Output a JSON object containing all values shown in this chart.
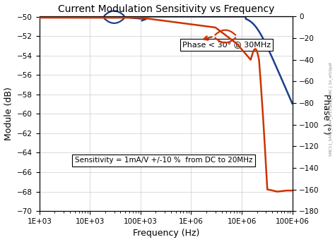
{
  "title": "Current Modulation Sensitivity vs Frequency",
  "xlabel": "Frequency (Hz)",
  "ylabel_left": "Module (dB)",
  "ylabel_right": "Phase (°)",
  "xtick_labels": [
    "1E+03",
    "10E+03",
    "100E+03",
    "1E+06",
    "10E+06",
    "100E+06"
  ],
  "xtick_values": [
    1000,
    10000,
    100000,
    1000000,
    10000000,
    100000000
  ],
  "yticks_left": [
    -70,
    -68,
    -66,
    -64,
    -62,
    -60,
    -58,
    -56,
    -54,
    -52,
    -50
  ],
  "yticks_right": [
    -180,
    -160,
    -140,
    -120,
    -100,
    -80,
    -60,
    -40,
    -20,
    0
  ],
  "ylim_left": [
    -70,
    -50
  ],
  "ylim_right": [
    -180,
    0
  ],
  "color_module": "#1c3f8c",
  "color_phase": "#cc3300",
  "annotation_phase_text": "Phase < 30° @ 30MHz",
  "annotation_sens_text": "Sensitivity = 1mA/V +/-10 %  from DC to 20MHz",
  "background_color": "#ffffff",
  "grid_color": "#cccccc"
}
